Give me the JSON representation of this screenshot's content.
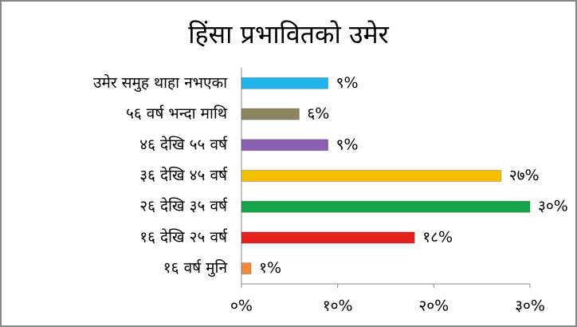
{
  "chart_data": {
    "type": "barh",
    "title": "हिंसा प्रभावितको उमेर",
    "categories": [
      "उमेर समुह थाहा नभएका",
      "५६ वर्ष भन्दा माथि",
      "४६ देखि ५५ वर्ष",
      "३६ देखि ४५ वर्ष",
      "२६ देखि ३५ वर्ष",
      "१६ देखि २५ वर्ष",
      "१६ वर्ष मुनि"
    ],
    "values": [
      9,
      6,
      9,
      27,
      30,
      18,
      1
    ],
    "value_labels": [
      "९%",
      "६%",
      "९%",
      "२७%",
      "३०%",
      "१८%",
      "१%"
    ],
    "colors": [
      "#1fb4e8",
      "#8b8660",
      "#8a5fb0",
      "#f5c000",
      "#17a34a",
      "#e8201c",
      "#f08a3c"
    ],
    "xlim": [
      0,
      30
    ],
    "xticks": [
      {
        "value": 0,
        "label": "०%"
      },
      {
        "value": 10,
        "label": "१०%"
      },
      {
        "value": 20,
        "label": "२०%"
      },
      {
        "value": 30,
        "label": "३०%"
      }
    ],
    "grid": false
  }
}
